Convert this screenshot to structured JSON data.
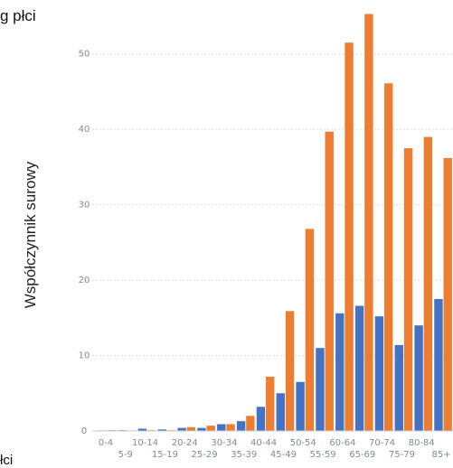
{
  "title": "g płci",
  "footer": "łci",
  "chart_data": {
    "type": "bar",
    "ylabel": "Współczynnik surowy",
    "xlabel": "",
    "ylim": [
      0,
      55
    ],
    "yticks": [
      0,
      10,
      20,
      30,
      40,
      50
    ],
    "grid": true,
    "categories": [
      "0-4",
      "5-9",
      "10-14",
      "15-19",
      "20-24",
      "25-29",
      "30-34",
      "35-39",
      "40-44",
      "45-49",
      "50-54",
      "55-59",
      "60-64",
      "65-69",
      "70-74",
      "75-79",
      "80-84",
      "85+"
    ],
    "series": [
      {
        "color": "#4472c4",
        "values": [
          0.0,
          0.1,
          0.3,
          0.2,
          0.4,
          0.4,
          0.9,
          1.3,
          3.2,
          5.0,
          6.5,
          11.0,
          15.6,
          16.6,
          15.2,
          11.4,
          14.0,
          17.5
        ]
      },
      {
        "color": "#ed7d31",
        "values": [
          0.1,
          0.0,
          0.1,
          0.1,
          0.5,
          0.7,
          0.9,
          2.0,
          7.2,
          15.9,
          26.8,
          39.7,
          51.5,
          55.3,
          46.1,
          37.5,
          39.0,
          36.2
        ]
      }
    ]
  }
}
